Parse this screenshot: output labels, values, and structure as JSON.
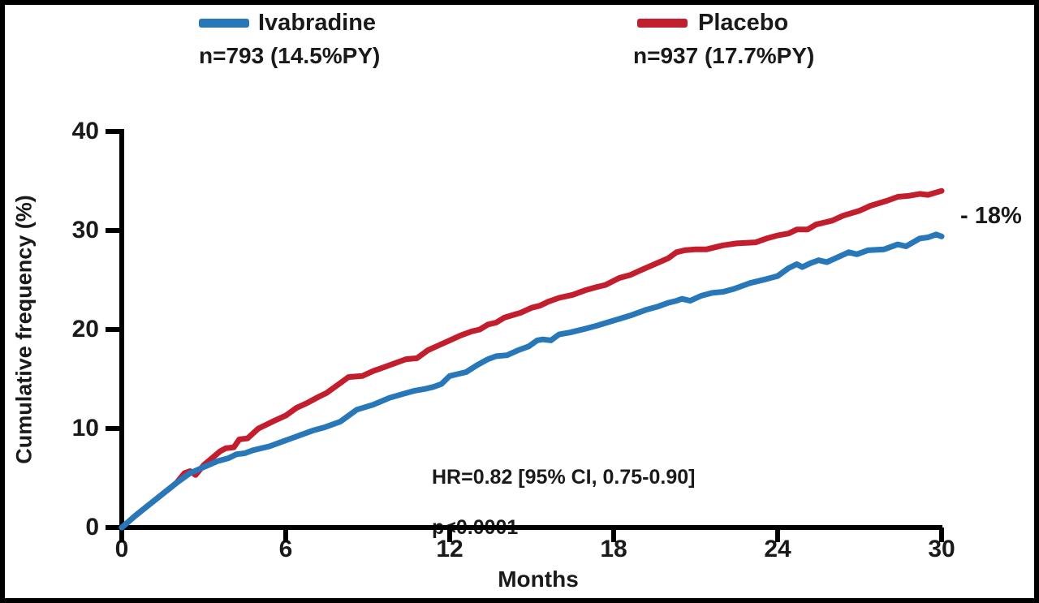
{
  "figure": {
    "background": "#ffffff",
    "border_color": "#000000"
  },
  "legend": {
    "items": [
      {
        "label": "Ivabradine",
        "sub": "n=793 (14.5%PY)",
        "color": "#2878B9"
      },
      {
        "label": "Placebo",
        "sub": "n=937 (17.7%PY)",
        "color": "#C31E2D"
      }
    ]
  },
  "annotations": {
    "hr_line1": "HR=0.82 [95% CI, 0.75-0.90]",
    "hr_line2": "p<0.0001",
    "delta_label": "- 18%"
  },
  "chart_data": {
    "type": "line",
    "title": "",
    "xlabel": "Months",
    "ylabel": "Cumulative frequency (%)",
    "xlim": [
      0,
      30
    ],
    "ylim": [
      0,
      40
    ],
    "x_ticks": [
      0,
      6,
      12,
      18,
      24,
      30
    ],
    "y_ticks": [
      0,
      10,
      20,
      30,
      40
    ],
    "grid": false,
    "legend_position": "top",
    "axis_color": "#000000",
    "series": [
      {
        "name": "Ivabradine",
        "color": "#2878B9",
        "final_value_pct": 29.4,
        "points": [
          [
            0,
            0
          ],
          [
            0.5,
            1.2
          ],
          [
            1,
            2.3
          ],
          [
            1.5,
            3.4
          ],
          [
            2,
            4.5
          ],
          [
            2.5,
            5.5
          ],
          [
            3,
            6.1
          ],
          [
            3.5,
            6.7
          ],
          [
            3.9,
            7.0
          ],
          [
            4.2,
            7.4
          ],
          [
            4.5,
            7.5
          ],
          [
            4.8,
            7.8
          ],
          [
            5.1,
            8.0
          ],
          [
            5.4,
            8.2
          ],
          [
            5.8,
            8.6
          ],
          [
            6.3,
            9.1
          ],
          [
            6.6,
            9.4
          ],
          [
            7,
            9.8
          ],
          [
            7.4,
            10.1
          ],
          [
            8,
            10.7
          ],
          [
            8.6,
            11.9
          ],
          [
            9.2,
            12.4
          ],
          [
            9.8,
            13.1
          ],
          [
            10.3,
            13.5
          ],
          [
            10.7,
            13.8
          ],
          [
            11.1,
            14.0
          ],
          [
            11.4,
            14.2
          ],
          [
            11.7,
            14.5
          ],
          [
            12,
            15.3
          ],
          [
            12.3,
            15.5
          ],
          [
            12.6,
            15.7
          ],
          [
            13,
            16.4
          ],
          [
            13.4,
            17.0
          ],
          [
            13.7,
            17.3
          ],
          [
            14.1,
            17.4
          ],
          [
            14.5,
            17.9
          ],
          [
            14.9,
            18.3
          ],
          [
            15.2,
            18.9
          ],
          [
            15.4,
            19.0
          ],
          [
            15.7,
            18.9
          ],
          [
            16,
            19.5
          ],
          [
            16.4,
            19.7
          ],
          [
            17,
            20.1
          ],
          [
            17.4,
            20.4
          ],
          [
            18,
            20.9
          ],
          [
            18.6,
            21.4
          ],
          [
            19.2,
            22.0
          ],
          [
            19.6,
            22.3
          ],
          [
            20,
            22.7
          ],
          [
            20.3,
            22.9
          ],
          [
            20.5,
            23.1
          ],
          [
            20.8,
            22.9
          ],
          [
            21.2,
            23.4
          ],
          [
            21.6,
            23.7
          ],
          [
            22,
            23.8
          ],
          [
            22.4,
            24.1
          ],
          [
            23,
            24.7
          ],
          [
            23.6,
            25.1
          ],
          [
            24,
            25.4
          ],
          [
            24.4,
            26.2
          ],
          [
            24.7,
            26.6
          ],
          [
            24.9,
            26.3
          ],
          [
            25.2,
            26.7
          ],
          [
            25.5,
            27.0
          ],
          [
            25.8,
            26.8
          ],
          [
            26.2,
            27.3
          ],
          [
            26.6,
            27.8
          ],
          [
            26.9,
            27.6
          ],
          [
            27.3,
            28.0
          ],
          [
            27.9,
            28.1
          ],
          [
            28.4,
            28.6
          ],
          [
            28.7,
            28.4
          ],
          [
            29.2,
            29.2
          ],
          [
            29.5,
            29.3
          ],
          [
            29.8,
            29.6
          ],
          [
            30,
            29.4
          ]
        ]
      },
      {
        "name": "Placebo",
        "color": "#C31E2D",
        "final_value_pct": 34.0,
        "points": [
          [
            0,
            0
          ],
          [
            0.5,
            1.2
          ],
          [
            1,
            2.3
          ],
          [
            1.5,
            3.4
          ],
          [
            2,
            4.5
          ],
          [
            2.3,
            5.5
          ],
          [
            2.5,
            5.7
          ],
          [
            2.7,
            5.3
          ],
          [
            3,
            6.3
          ],
          [
            3.3,
            7.0
          ],
          [
            3.6,
            7.7
          ],
          [
            3.8,
            8.0
          ],
          [
            4.1,
            8.1
          ],
          [
            4.3,
            8.9
          ],
          [
            4.6,
            9.0
          ],
          [
            5,
            10.0
          ],
          [
            5.3,
            10.4
          ],
          [
            5.6,
            10.8
          ],
          [
            6,
            11.3
          ],
          [
            6.4,
            12.1
          ],
          [
            6.8,
            12.6
          ],
          [
            7.2,
            13.2
          ],
          [
            7.5,
            13.6
          ],
          [
            8,
            14.6
          ],
          [
            8.3,
            15.2
          ],
          [
            8.8,
            15.3
          ],
          [
            9.2,
            15.8
          ],
          [
            9.6,
            16.2
          ],
          [
            10,
            16.6
          ],
          [
            10.4,
            17.0
          ],
          [
            10.8,
            17.1
          ],
          [
            11.2,
            17.9
          ],
          [
            11.6,
            18.4
          ],
          [
            12,
            18.9
          ],
          [
            12.4,
            19.4
          ],
          [
            12.8,
            19.8
          ],
          [
            13.1,
            20.0
          ],
          [
            13.4,
            20.5
          ],
          [
            13.7,
            20.7
          ],
          [
            14,
            21.2
          ],
          [
            14.6,
            21.7
          ],
          [
            15,
            22.2
          ],
          [
            15.3,
            22.4
          ],
          [
            15.6,
            22.8
          ],
          [
            16,
            23.2
          ],
          [
            16.5,
            23.5
          ],
          [
            17,
            24.0
          ],
          [
            17.4,
            24.3
          ],
          [
            17.7,
            24.5
          ],
          [
            18.2,
            25.2
          ],
          [
            18.6,
            25.5
          ],
          [
            19,
            26.0
          ],
          [
            19.5,
            26.6
          ],
          [
            20,
            27.2
          ],
          [
            20.3,
            27.8
          ],
          [
            20.6,
            28.0
          ],
          [
            21,
            28.1
          ],
          [
            21.4,
            28.1
          ],
          [
            22,
            28.5
          ],
          [
            22.5,
            28.7
          ],
          [
            23.2,
            28.8
          ],
          [
            23.6,
            29.2
          ],
          [
            24,
            29.5
          ],
          [
            24.4,
            29.7
          ],
          [
            24.7,
            30.1
          ],
          [
            25.1,
            30.1
          ],
          [
            25.4,
            30.6
          ],
          [
            26,
            31.0
          ],
          [
            26.4,
            31.5
          ],
          [
            27,
            32.0
          ],
          [
            27.4,
            32.5
          ],
          [
            28,
            33.0
          ],
          [
            28.4,
            33.4
          ],
          [
            28.8,
            33.5
          ],
          [
            29.2,
            33.7
          ],
          [
            29.5,
            33.6
          ],
          [
            30,
            34.0
          ]
        ]
      }
    ]
  }
}
